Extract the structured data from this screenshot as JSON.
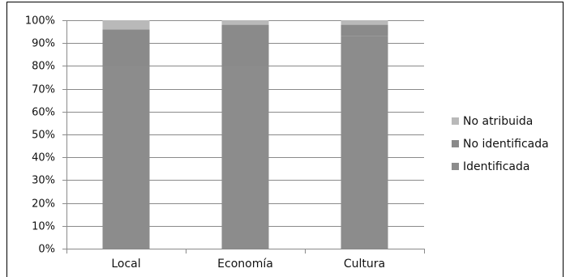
{
  "chart_data": {
    "type": "bar",
    "stacked": true,
    "categories": [
      "Local",
      "Economía",
      "Cultura"
    ],
    "series": [
      {
        "name": "Identificada",
        "values": [
          80,
          80,
          93
        ],
        "color": "#8c8c8c"
      },
      {
        "name": "No identificada",
        "values": [
          16,
          18,
          5
        ],
        "color": "#8a8a8a"
      },
      {
        "name": "No atribuida",
        "values": [
          4,
          2,
          2
        ],
        "color": "#b9b9b9"
      }
    ],
    "ylim": [
      0,
      100
    ],
    "yticks": [
      "0%",
      "10%",
      "20%",
      "30%",
      "40%",
      "50%",
      "60%",
      "70%",
      "80%",
      "90%",
      "100%"
    ],
    "grid": true,
    "legend": "right",
    "legend_order": [
      "No atribuida",
      "No identificada",
      "Identificada"
    ],
    "title": "",
    "xlabel": "",
    "ylabel": ""
  }
}
